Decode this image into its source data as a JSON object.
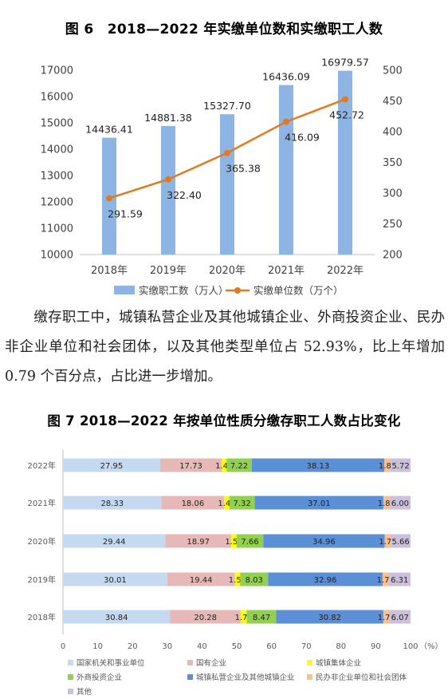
{
  "fig6": {
    "title": "图 6　2018—2022 年实缴单位数和实缴职工人数"
  },
  "fig7": {
    "title": "图 7  2018—2022 年按单位性质分缴存职工人数占比变化"
  },
  "paragraph": "缴存职工中，城镇私营企业及其他城镇企业、外商投资企业、民办非企业单位和社会团体，以及其他类型单位占 52.93%，比上年增加 0.79 个百分点，占比进一步增加。",
  "chart_data": [
    {
      "type": "bar",
      "categories": [
        "2018年",
        "2019年",
        "2020年",
        "2021年",
        "2022年"
      ],
      "series": [
        {
          "name": "实缴职工数（万人）",
          "type": "bar",
          "axis": "left",
          "color": "#8eb4e3",
          "values": [
            14436.41,
            14881.38,
            15327.7,
            16436.09,
            16979.57
          ],
          "labels": [
            "14436.41",
            "14881.38",
            "15327.70",
            "16436.09",
            "16979.57"
          ]
        },
        {
          "name": "实缴单位数（万个）",
          "type": "line",
          "axis": "right",
          "color": "#e07b22",
          "values": [
            291.59,
            322.4,
            365.38,
            416.09,
            452.72
          ],
          "labels": [
            "291.59",
            "322.40",
            "365.38",
            "416.09",
            "452.72"
          ]
        }
      ],
      "ylim_left": [
        10000,
        17000
      ],
      "yticks_left": [
        "10000",
        "11000",
        "12000",
        "13000",
        "14000",
        "15000",
        "16000",
        "17000"
      ],
      "ylim_right": [
        200,
        500
      ],
      "yticks_right": [
        "200",
        "250",
        "300",
        "350",
        "400",
        "450",
        "500"
      ],
      "legend_position": "bottom",
      "grid": false
    },
    {
      "type": "bar",
      "stacked": true,
      "orientation": "horizontal",
      "categories": [
        "2022年",
        "2021年",
        "2020年",
        "2019年",
        "2018年"
      ],
      "series": [
        {
          "name": "国家机关和事业单位",
          "color": "#c5d9f1",
          "values": [
            27.95,
            28.33,
            29.44,
            30.01,
            30.84
          ],
          "labels": [
            "27.95",
            "28.33",
            "29.44",
            "30.01",
            "30.84"
          ]
        },
        {
          "name": "国有企业",
          "color": "#e6b9b8",
          "values": [
            17.73,
            18.06,
            18.97,
            19.44,
            20.28
          ],
          "labels": [
            "17.73",
            "18.06",
            "18.97",
            "19.44",
            "20.28"
          ]
        },
        {
          "name": "城镇集体企业",
          "color": "#ffff00",
          "values": [
            1.4,
            1.47,
            1.55,
            1.52,
            1.77
          ],
          "labels": [
            "1.40",
            "1.47",
            "1.55",
            "1.52",
            "1.77"
          ]
        },
        {
          "name": "外商投资企业",
          "color": "#92d050",
          "values": [
            7.22,
            7.32,
            7.66,
            8.03,
            8.47
          ],
          "labels": [
            "7.22",
            "7.32",
            "7.66",
            "8.03",
            "8.47"
          ]
        },
        {
          "name": "城镇私营企业及其他城镇企业",
          "color": "#5b8fd6",
          "values": [
            38.13,
            37.01,
            34.96,
            32.96,
            30.82
          ],
          "labels": [
            "38.13",
            "37.01",
            "34.96",
            "32.96",
            "30.82"
          ]
        },
        {
          "name": "民办非企业单位和社会团体",
          "color": "#fac090",
          "values": [
            1.86,
            1.81,
            1.76,
            1.73,
            1.75
          ],
          "labels": [
            "1.86",
            "1.81",
            "1.76",
            "1.73",
            "1.75"
          ]
        },
        {
          "name": "其他",
          "color": "#ccc0da",
          "values": [
            5.72,
            6.0,
            5.66,
            6.31,
            6.07
          ],
          "labels": [
            "5.72",
            "6.00",
            "5.66",
            "6.31",
            "6.07"
          ]
        }
      ],
      "xlim": [
        0,
        100
      ],
      "xticks": [
        "0",
        "10",
        "20",
        "30",
        "40",
        "50",
        "60",
        "70",
        "80",
        "90",
        "100"
      ],
      "xunit": "（%）",
      "legend_position": "bottom",
      "grid": false
    }
  ]
}
